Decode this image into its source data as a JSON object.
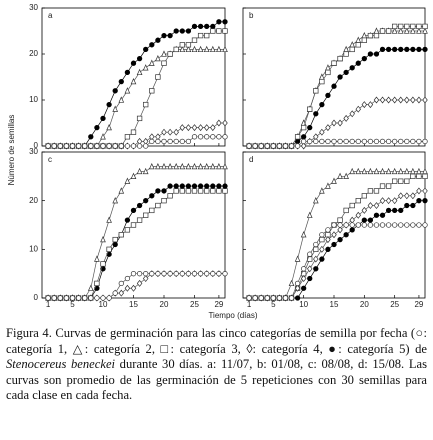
{
  "ylabel": "Número de semillas",
  "xlabel": "Tiempo (días)",
  "caption": [
    "Figura 4. Curvas de germinación para las cinco categorías de semilla por fecha (○: categoría 1, △: categoría 2, □: categoría 3, ◊: categoría 4, ●: categoría 5) de ",
    "Stenocereus beneckei",
    " durante 30 días. a: 11/07, b: 01/08, c: 08/08, d: 15/08. Las curvas son promedio de las germinación de 5 repeticiones con 30 semillas para cada clase en cada fecha."
  ],
  "chart_data": [
    {
      "type": "line",
      "title": "a",
      "ytick_labels": true,
      "xtick_labels": false,
      "xlim": [
        0,
        30
      ],
      "ylim": [
        0,
        30
      ],
      "yticks": [
        0,
        10,
        20,
        30
      ],
      "xticks": [
        1,
        5,
        10,
        15,
        20,
        25,
        29
      ],
      "x": [
        1,
        2,
        3,
        4,
        5,
        6,
        7,
        8,
        9,
        10,
        11,
        12,
        13,
        14,
        15,
        16,
        17,
        18,
        19,
        20,
        21,
        22,
        23,
        24,
        25,
        26,
        27,
        28,
        29,
        30
      ],
      "series": [
        {
          "marker": "dot",
          "color": "#000",
          "values": [
            0,
            0,
            0,
            0,
            0,
            0,
            0,
            2,
            4,
            6,
            9,
            12,
            14,
            16,
            18,
            19,
            21,
            22,
            23,
            24,
            24,
            25,
            25,
            25,
            26,
            26,
            26,
            26,
            27,
            27
          ]
        },
        {
          "marker": "triangle",
          "color": "#555",
          "values": [
            0,
            0,
            0,
            0,
            0,
            0,
            0,
            0,
            0,
            2,
            4,
            8,
            10,
            12,
            14,
            16,
            17,
            18,
            19,
            20,
            20,
            21,
            21,
            21,
            21,
            21,
            21,
            21,
            21,
            21
          ]
        },
        {
          "marker": "square",
          "color": "#555",
          "values": [
            0,
            0,
            0,
            0,
            0,
            0,
            0,
            0,
            0,
            0,
            0,
            0,
            0,
            2,
            3,
            6,
            9,
            12,
            15,
            18,
            20,
            21,
            22,
            22,
            23,
            24,
            24,
            25,
            25,
            25
          ]
        },
        {
          "marker": "diamond",
          "color": "#555",
          "values": [
            0,
            0,
            0,
            0,
            0,
            0,
            0,
            0,
            0,
            0,
            0,
            0,
            0,
            0,
            0,
            1,
            1,
            2,
            2,
            3,
            3,
            3,
            4,
            4,
            4,
            4,
            4,
            4,
            5,
            5
          ]
        },
        {
          "marker": "circle",
          "color": "#555",
          "values": [
            0,
            0,
            0,
            0,
            0,
            0,
            0,
            0,
            0,
            0,
            0,
            0,
            0,
            0,
            0,
            0,
            0,
            1,
            1,
            1,
            1,
            1,
            1,
            1,
            2,
            2,
            2,
            2,
            2,
            2
          ]
        }
      ]
    },
    {
      "type": "line",
      "title": "b",
      "ytick_labels": false,
      "xtick_labels": false,
      "xlim": [
        0,
        30
      ],
      "ylim": [
        0,
        30
      ],
      "yticks": [
        0,
        10,
        20,
        30
      ],
      "xticks": [
        1,
        5,
        10,
        15,
        20,
        25,
        29
      ],
      "x": [
        1,
        2,
        3,
        4,
        5,
        6,
        7,
        8,
        9,
        10,
        11,
        12,
        13,
        14,
        15,
        16,
        17,
        18,
        19,
        20,
        21,
        22,
        23,
        24,
        25,
        26,
        27,
        28,
        29,
        30
      ],
      "series": [
        {
          "marker": "dot",
          "color": "#000",
          "values": [
            0,
            0,
            0,
            0,
            0,
            0,
            0,
            0,
            1,
            2,
            4,
            7,
            9,
            11,
            13,
            15,
            16,
            17,
            18,
            19,
            20,
            20,
            21,
            21,
            21,
            21,
            21,
            21,
            21,
            21
          ]
        },
        {
          "marker": "triangle",
          "color": "#555",
          "values": [
            0,
            0,
            0,
            0,
            0,
            0,
            0,
            0,
            2,
            5,
            8,
            12,
            15,
            17,
            18,
            19,
            21,
            22,
            23,
            24,
            24,
            25,
            25,
            25,
            25,
            25,
            25,
            25,
            25,
            25
          ]
        },
        {
          "marker": "square",
          "color": "#555",
          "values": [
            0,
            0,
            0,
            0,
            0,
            0,
            0,
            0,
            2,
            4,
            8,
            12,
            14,
            16,
            18,
            19,
            20,
            21,
            22,
            23,
            24,
            24,
            25,
            25,
            26,
            26,
            26,
            26,
            26,
            26
          ]
        },
        {
          "marker": "diamond",
          "color": "#555",
          "values": [
            0,
            0,
            0,
            0,
            0,
            0,
            0,
            0,
            0,
            0,
            1,
            2,
            3,
            4,
            5,
            5,
            6,
            7,
            8,
            9,
            9,
            10,
            10,
            10,
            10,
            10,
            10,
            10,
            10,
            10
          ]
        },
        {
          "marker": "circle",
          "color": "#555",
          "values": [
            0,
            0,
            0,
            0,
            0,
            0,
            0,
            0,
            0,
            1,
            1,
            1,
            1,
            1,
            1,
            1,
            1,
            1,
            1,
            1,
            1,
            1,
            1,
            1,
            1,
            1,
            1,
            1,
            1,
            1
          ]
        }
      ]
    },
    {
      "type": "line",
      "title": "c",
      "ytick_labels": true,
      "xtick_labels": true,
      "xlim": [
        0,
        30
      ],
      "ylim": [
        0,
        30
      ],
      "yticks": [
        0,
        10,
        20,
        30
      ],
      "xticks": [
        1,
        5,
        10,
        15,
        20,
        25,
        29
      ],
      "x": [
        1,
        2,
        3,
        4,
        5,
        6,
        7,
        8,
        9,
        10,
        11,
        12,
        13,
        14,
        15,
        16,
        17,
        18,
        19,
        20,
        21,
        22,
        23,
        24,
        25,
        26,
        27,
        28,
        29,
        30
      ],
      "series": [
        {
          "marker": "dot",
          "color": "#000",
          "values": [
            0,
            0,
            0,
            0,
            0,
            0,
            0,
            0,
            2,
            6,
            9,
            11,
            13,
            16,
            18,
            19,
            20,
            21,
            22,
            22,
            23,
            23,
            23,
            23,
            23,
            23,
            23,
            23,
            23,
            23
          ]
        },
        {
          "marker": "triangle",
          "color": "#555",
          "values": [
            0,
            0,
            0,
            0,
            0,
            0,
            0,
            2,
            8,
            12,
            16,
            20,
            22,
            24,
            25,
            26,
            26,
            27,
            27,
            27,
            27,
            27,
            27,
            27,
            27,
            27,
            27,
            27,
            27,
            27
          ]
        },
        {
          "marker": "square",
          "color": "#555",
          "values": [
            0,
            0,
            0,
            0,
            0,
            0,
            0,
            0,
            3,
            7,
            10,
            12,
            13,
            14,
            15,
            16,
            17,
            18,
            19,
            20,
            21,
            22,
            22,
            22,
            22,
            22,
            22,
            22,
            22,
            22
          ]
        },
        {
          "marker": "diamond",
          "color": "#555",
          "values": [
            0,
            0,
            0,
            0,
            0,
            0,
            0,
            0,
            0,
            0,
            0,
            1,
            1,
            2,
            2,
            3,
            4,
            5,
            5,
            5,
            5,
            5,
            5,
            5,
            5,
            5,
            5,
            5,
            5,
            5
          ]
        },
        {
          "marker": "circle",
          "color": "#555",
          "values": [
            0,
            0,
            0,
            0,
            0,
            0,
            0,
            0,
            0,
            0,
            0,
            1,
            3,
            4,
            5,
            5,
            5,
            5,
            5,
            5,
            5,
            5,
            5,
            5,
            5,
            5,
            5,
            5,
            5,
            5
          ]
        }
      ]
    },
    {
      "type": "line",
      "title": "d",
      "ytick_labels": false,
      "xtick_labels": true,
      "xlim": [
        0,
        30
      ],
      "ylim": [
        0,
        30
      ],
      "yticks": [
        0,
        10,
        20,
        30
      ],
      "xticks": [
        1,
        5,
        10,
        15,
        20,
        25,
        29
      ],
      "x": [
        1,
        2,
        3,
        4,
        5,
        6,
        7,
        8,
        9,
        10,
        11,
        12,
        13,
        14,
        15,
        16,
        17,
        18,
        19,
        20,
        21,
        22,
        23,
        24,
        25,
        26,
        27,
        28,
        29,
        30
      ],
      "series": [
        {
          "marker": "dot",
          "color": "#000",
          "values": [
            0,
            0,
            0,
            0,
            0,
            0,
            0,
            0,
            0,
            2,
            4,
            6,
            8,
            10,
            11,
            12,
            13,
            14,
            15,
            16,
            16,
            17,
            17,
            18,
            18,
            18,
            19,
            19,
            20,
            20
          ]
        },
        {
          "marker": "triangle",
          "color": "#555",
          "values": [
            0,
            0,
            0,
            0,
            0,
            0,
            0,
            3,
            8,
            13,
            17,
            20,
            22,
            23,
            24,
            25,
            25,
            26,
            26,
            26,
            26,
            26,
            26,
            26,
            26,
            26,
            26,
            26,
            26,
            26
          ]
        },
        {
          "marker": "square",
          "color": "#555",
          "values": [
            0,
            0,
            0,
            0,
            0,
            0,
            0,
            0,
            2,
            5,
            8,
            10,
            12,
            13,
            15,
            16,
            18,
            19,
            20,
            21,
            22,
            22,
            23,
            23,
            24,
            24,
            24,
            25,
            25,
            25
          ]
        },
        {
          "marker": "diamond",
          "color": "#555",
          "values": [
            0,
            0,
            0,
            0,
            0,
            0,
            0,
            0,
            2,
            4,
            6,
            8,
            10,
            12,
            13,
            14,
            15,
            16,
            17,
            18,
            19,
            19,
            20,
            20,
            20,
            21,
            21,
            21,
            22,
            22
          ]
        },
        {
          "marker": "circle",
          "color": "#555",
          "values": [
            0,
            0,
            0,
            0,
            0,
            0,
            0,
            0,
            3,
            6,
            9,
            11,
            13,
            14,
            15,
            15,
            15,
            15,
            15,
            15,
            15,
            15,
            15,
            15,
            15,
            15,
            15,
            15,
            15,
            15
          ]
        }
      ]
    }
  ]
}
